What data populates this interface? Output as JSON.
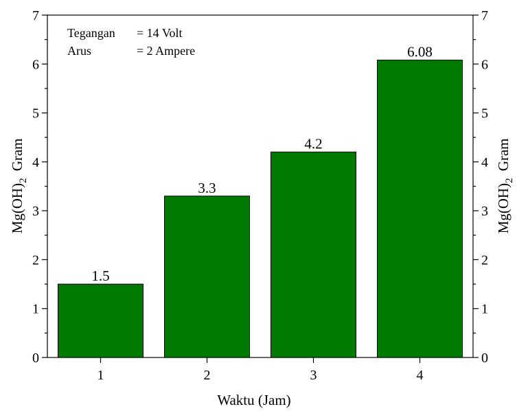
{
  "chart_data": {
    "type": "bar",
    "categories": [
      "1",
      "2",
      "3",
      "4"
    ],
    "values": [
      1.5,
      3.3,
      4.2,
      6.08
    ],
    "data_labels": [
      "1.5",
      "3.3",
      "4.2",
      "6.08"
    ],
    "xlabel": "Waktu (Jam)",
    "ylabel": {
      "prefix": "Mg(OH)",
      "subscript": "2",
      "suffix": "Gram"
    },
    "ylim": [
      0,
      7
    ],
    "yticks": [
      "0",
      "1",
      "2",
      "3",
      "4",
      "5",
      "6",
      "7"
    ],
    "bar_color": "#007a00",
    "grid": false,
    "annotation": {
      "rows": [
        {
          "label": "Tegangan",
          "value": "= 14 Volt"
        },
        {
          "label": "Arus",
          "value": "= 2 Ampere"
        }
      ],
      "placement": "top-left"
    }
  }
}
